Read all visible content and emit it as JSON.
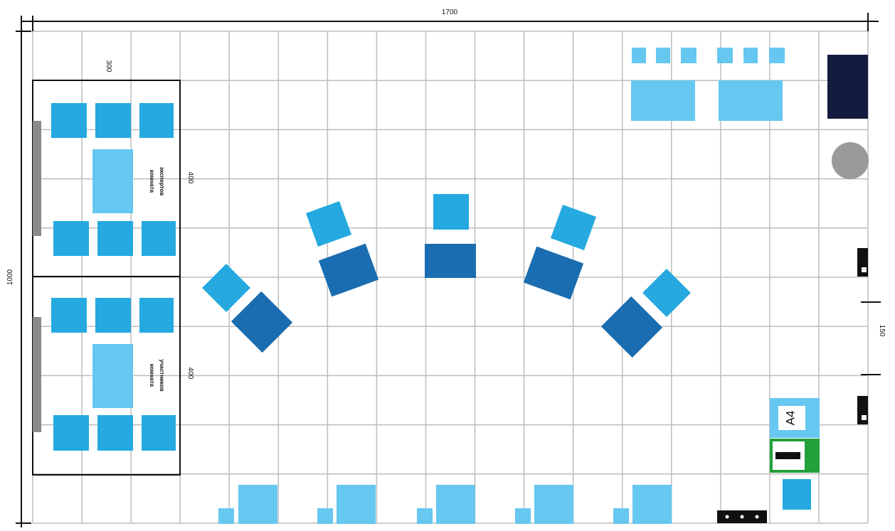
{
  "dimensions": {
    "total_width": "1700",
    "total_height": "1000",
    "room_width": "300",
    "room_experts_height": "400",
    "room_participants_height": "400",
    "right_gap": "150"
  },
  "rooms": {
    "experts": {
      "line1": "комната",
      "line2": "экспертов"
    },
    "participants": {
      "line1": "комната",
      "line2": "участников"
    }
  },
  "equipment": {
    "printer_label": "A4"
  },
  "colors": {
    "grid": "#bdbdbd",
    "chair": "#25a9e0",
    "table_light": "#66c7f0",
    "desk_dark": "#1a6db0",
    "panel_navy": "#131b3e",
    "whiteboard": "#8a8a8a",
    "round_table": "#9a9a9a",
    "printer_frame": "#66c7f0",
    "cabinet_green": "#22a03a",
    "outline": "#111111"
  }
}
